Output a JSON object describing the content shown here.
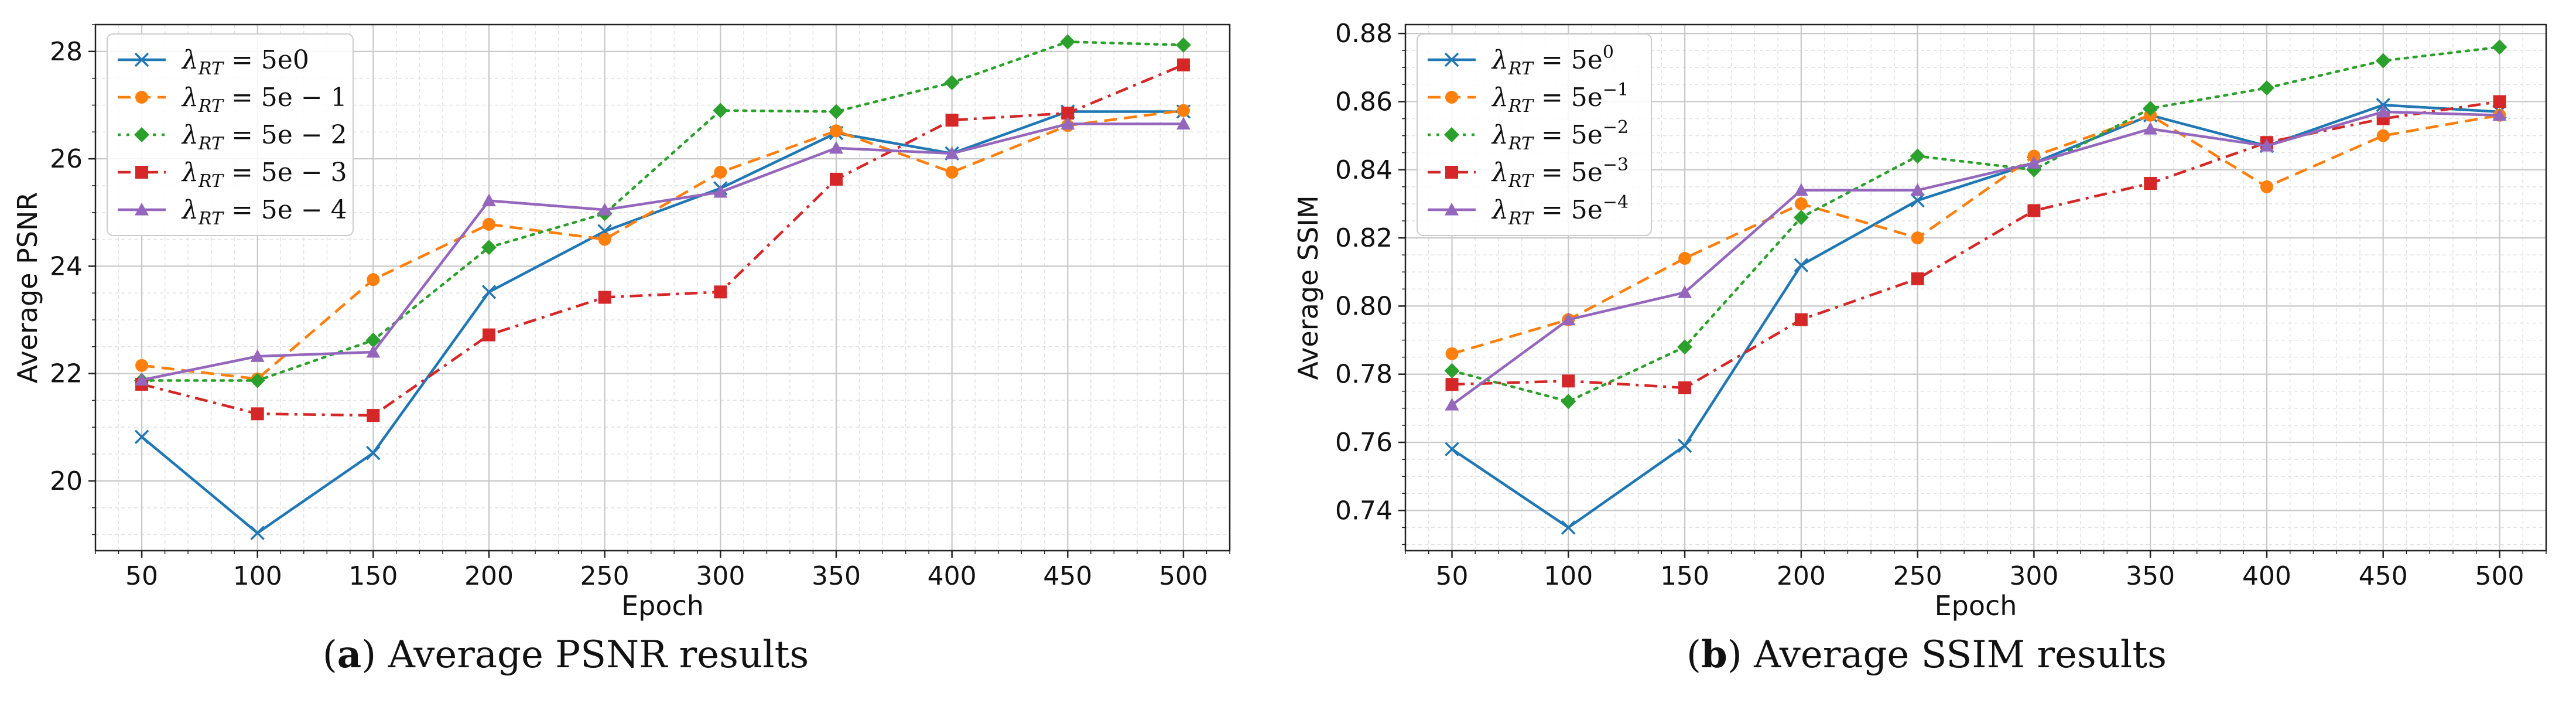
{
  "captions": [
    {
      "letter": "a",
      "text": "Average PSNR results"
    },
    {
      "letter": "b",
      "text": "Average SSIM results"
    }
  ],
  "chart_data": [
    {
      "type": "line",
      "title": "",
      "xlabel": "Epoch",
      "ylabel": "Average PSNR",
      "x": [
        50,
        100,
        150,
        200,
        250,
        300,
        350,
        400,
        450,
        500
      ],
      "xlim": [
        30,
        520
      ],
      "ylim": [
        18.7,
        28.5
      ],
      "yticks": [
        20,
        22,
        24,
        26,
        28
      ],
      "ytick_labels": [
        "20",
        "22",
        "24",
        "26",
        "28"
      ],
      "grid": true,
      "legend_position": "top-left",
      "series": [
        {
          "name": "λRT = 5e0",
          "label_main": "λ",
          "label_sub": "RT",
          "label_rest": " = 5e0",
          "color": "#1f77b4",
          "dash": "solid",
          "marker": "x",
          "values": [
            20.82,
            19.03,
            20.52,
            23.52,
            24.65,
            25.45,
            26.48,
            26.1,
            26.88,
            26.88
          ]
        },
        {
          "name": "λRT = 5e−1",
          "label_main": "λ",
          "label_sub": "RT",
          "label_rest": " = 5e − 1",
          "color": "#ff7f0e",
          "dash": "dashed",
          "marker": "circle",
          "values": [
            22.15,
            21.9,
            23.75,
            24.78,
            24.5,
            25.75,
            26.52,
            25.75,
            26.62,
            26.9
          ]
        },
        {
          "name": "λRT = 5e−2",
          "label_main": "λ",
          "label_sub": "RT",
          "label_rest": " = 5e − 2",
          "color": "#2ca02c",
          "dash": "dotted",
          "marker": "diamond",
          "values": [
            21.87,
            21.87,
            22.62,
            24.35,
            24.98,
            26.9,
            26.88,
            27.42,
            28.18,
            28.12
          ]
        },
        {
          "name": "λRT = 5e−3",
          "label_main": "λ",
          "label_sub": "RT",
          "label_rest": " = 5e − 3",
          "color": "#d62728",
          "dash": "dashdot",
          "marker": "square",
          "values": [
            21.8,
            21.25,
            21.22,
            22.72,
            23.42,
            23.52,
            25.62,
            26.72,
            26.85,
            27.75
          ]
        },
        {
          "name": "λRT = 5e−4",
          "label_main": "λ",
          "label_sub": "RT",
          "label_rest": " = 5e − 4",
          "color": "#9467bd",
          "dash": "solid",
          "marker": "triangle",
          "values": [
            21.88,
            22.32,
            22.4,
            25.22,
            25.05,
            25.38,
            26.2,
            26.1,
            26.65,
            26.65
          ]
        }
      ]
    },
    {
      "type": "line",
      "title": "",
      "xlabel": "Epoch",
      "ylabel": "Average SSIM",
      "x": [
        50,
        100,
        150,
        200,
        250,
        300,
        350,
        400,
        450,
        500
      ],
      "xlim": [
        30,
        520
      ],
      "ylim": [
        0.7282,
        0.8826
      ],
      "yticks": [
        0.74,
        0.76,
        0.78,
        0.8,
        0.82,
        0.84,
        0.86,
        0.88
      ],
      "ytick_labels": [
        "0.74",
        "0.76",
        "0.78",
        "0.80",
        "0.82",
        "0.84",
        "0.86",
        "0.88"
      ],
      "grid": true,
      "legend_position": "top-left",
      "series": [
        {
          "name": "λRT = 5e^0",
          "label_main": "λ",
          "label_sub": "RT",
          "label_rest": " = 5e",
          "label_sup": "0",
          "color": "#1f77b4",
          "dash": "solid",
          "marker": "x",
          "values": [
            0.758,
            0.735,
            0.759,
            0.812,
            0.831,
            0.842,
            0.856,
            0.847,
            0.859,
            0.857
          ]
        },
        {
          "name": "λRT = 5e^−1",
          "label_main": "λ",
          "label_sub": "RT",
          "label_rest": " = 5e",
          "label_sup": "−1",
          "color": "#ff7f0e",
          "dash": "dashed",
          "marker": "circle",
          "values": [
            0.786,
            0.796,
            0.814,
            0.83,
            0.82,
            0.844,
            0.856,
            0.835,
            0.85,
            0.856
          ]
        },
        {
          "name": "λRT = 5e^−2",
          "label_main": "λ",
          "label_sub": "RT",
          "label_rest": " = 5e",
          "label_sup": "−2",
          "color": "#2ca02c",
          "dash": "dotted",
          "marker": "diamond",
          "values": [
            0.781,
            0.772,
            0.788,
            0.826,
            0.844,
            0.84,
            0.858,
            0.864,
            0.872,
            0.876
          ]
        },
        {
          "name": "λRT = 5e^−3",
          "label_main": "λ",
          "label_sub": "RT",
          "label_rest": " = 5e",
          "label_sup": "−3",
          "color": "#d62728",
          "dash": "dashdot",
          "marker": "square",
          "values": [
            0.777,
            0.778,
            0.776,
            0.796,
            0.808,
            0.828,
            0.836,
            0.848,
            0.855,
            0.86
          ]
        },
        {
          "name": "λRT = 5e^−4",
          "label_main": "λ",
          "label_sub": "RT",
          "label_rest": " = 5e",
          "label_sup": "−4",
          "color": "#9467bd",
          "dash": "solid",
          "marker": "triangle",
          "values": [
            0.771,
            0.796,
            0.804,
            0.834,
            0.834,
            0.842,
            0.852,
            0.847,
            0.857,
            0.856
          ]
        }
      ]
    }
  ]
}
